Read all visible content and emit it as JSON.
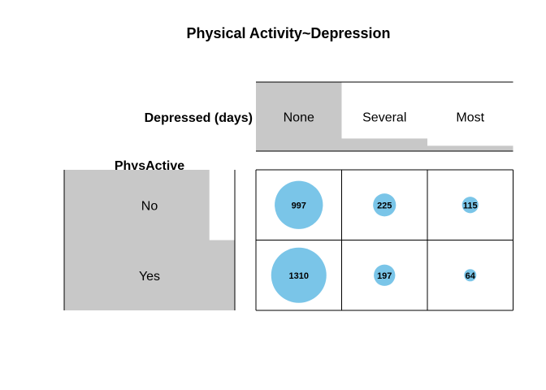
{
  "chart_data": {
    "type": "balloon",
    "title": "Physical Activity~Depression",
    "column_variable": "Depressed (days)",
    "row_variable": "PhysActive",
    "columns": [
      "None",
      "Several",
      "Most"
    ],
    "rows": [
      "No",
      "Yes"
    ],
    "counts": [
      [
        997,
        225,
        115
      ],
      [
        1310,
        197,
        64
      ]
    ],
    "colors": {
      "balloon": "#7AC5E8",
      "margin_bar": "#C8C8C8",
      "grid": "#000000"
    }
  }
}
